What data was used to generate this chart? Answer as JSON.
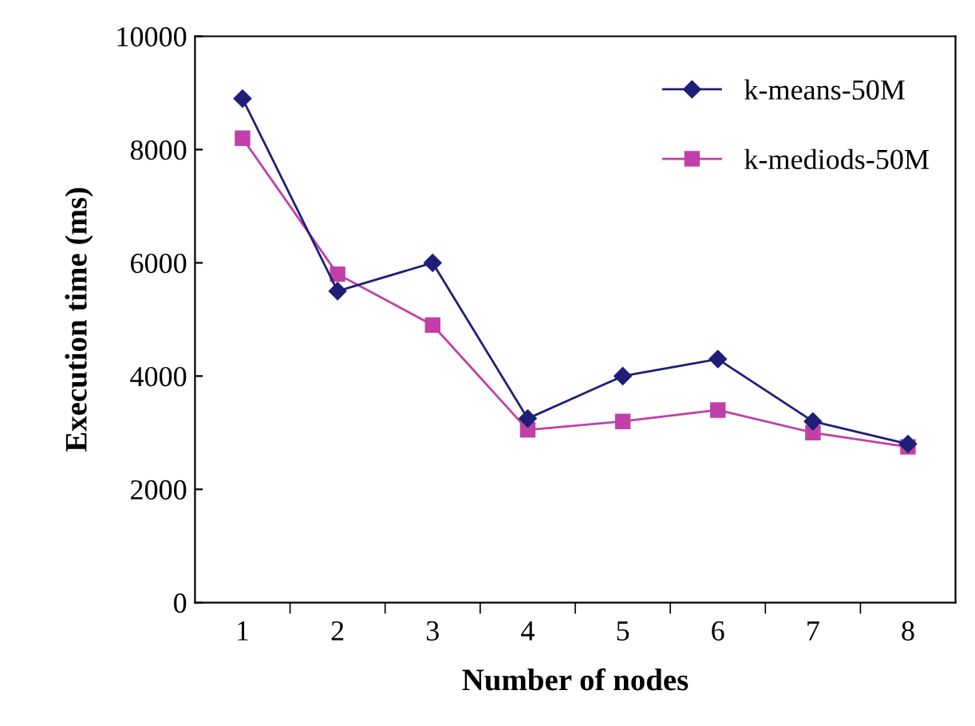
{
  "chart_data": {
    "type": "line",
    "xlabel": "Number of nodes",
    "ylabel": "Execution time (ms)",
    "categories": [
      "1",
      "2",
      "3",
      "4",
      "5",
      "6",
      "7",
      "8"
    ],
    "series": [
      {
        "name": "k-means-50M",
        "color": "#1f1f78",
        "marker": "diamond",
        "values": [
          8900,
          5500,
          6000,
          3250,
          4000,
          4300,
          3200,
          2800
        ]
      },
      {
        "name": "k-mediods-50M",
        "color": "#c040a8",
        "marker": "square",
        "values": [
          8200,
          5800,
          4900,
          3050,
          3200,
          3400,
          3000,
          2750
        ]
      }
    ],
    "ylim": [
      0,
      10000
    ],
    "yticks": [
      0,
      2000,
      4000,
      6000,
      8000,
      10000
    ],
    "grid": false,
    "legend": "top right",
    "line_style": "solid"
  }
}
